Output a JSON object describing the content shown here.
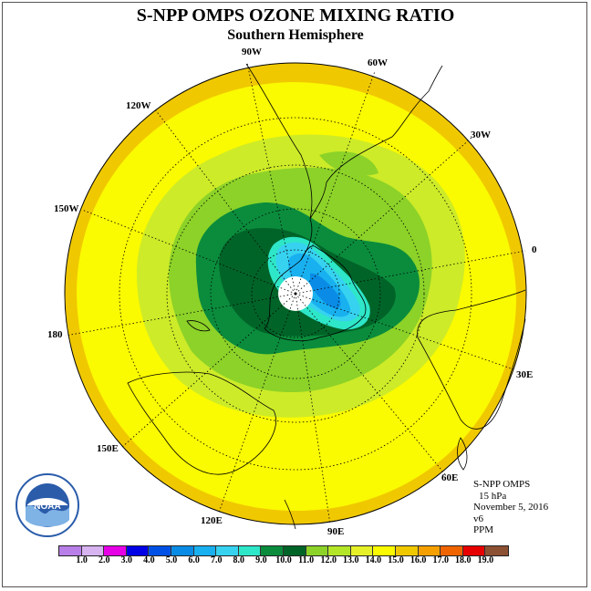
{
  "header": {
    "title": "S-NPP OMPS OZONE MIXING RATIO",
    "subtitle": "Southern Hemisphere"
  },
  "longitude_labels": {
    "w90": "90W",
    "w60": "60W",
    "w30": "30W",
    "e0": "0",
    "e30": "30E",
    "e60": "60E",
    "e90": "90E",
    "e120": "120E",
    "e150": "150E",
    "e180": "180",
    "w150": "150W",
    "w120": "120W"
  },
  "info": {
    "instrument": "S-NPP OMPS",
    "level": "15 hPa",
    "date": "November 5, 2016",
    "version": "v6",
    "units": "PPM"
  },
  "colorbar": {
    "colors": [
      "#b87fe8",
      "#d7b3f0",
      "#e600e6",
      "#0000e6",
      "#0050e6",
      "#0a8ce6",
      "#19b0f0",
      "#36d2f0",
      "#2ee6c8",
      "#0a8c3c",
      "#006428",
      "#8cd228",
      "#b4e628",
      "#e6f028",
      "#fafa00",
      "#f0c800",
      "#f5a000",
      "#f06400",
      "#e60000",
      "#8c5032"
    ],
    "labels": [
      "1.0",
      "2.0",
      "3.0",
      "4.0",
      "5.0",
      "6.0",
      "7.0",
      "8.0",
      "9.0",
      "10.0",
      "11.0",
      "12.0",
      "13.0",
      "14.0",
      "15.0",
      "16.0",
      "17.0",
      "18.0",
      "19.0"
    ]
  },
  "logo": {
    "text": "NOAA"
  }
}
